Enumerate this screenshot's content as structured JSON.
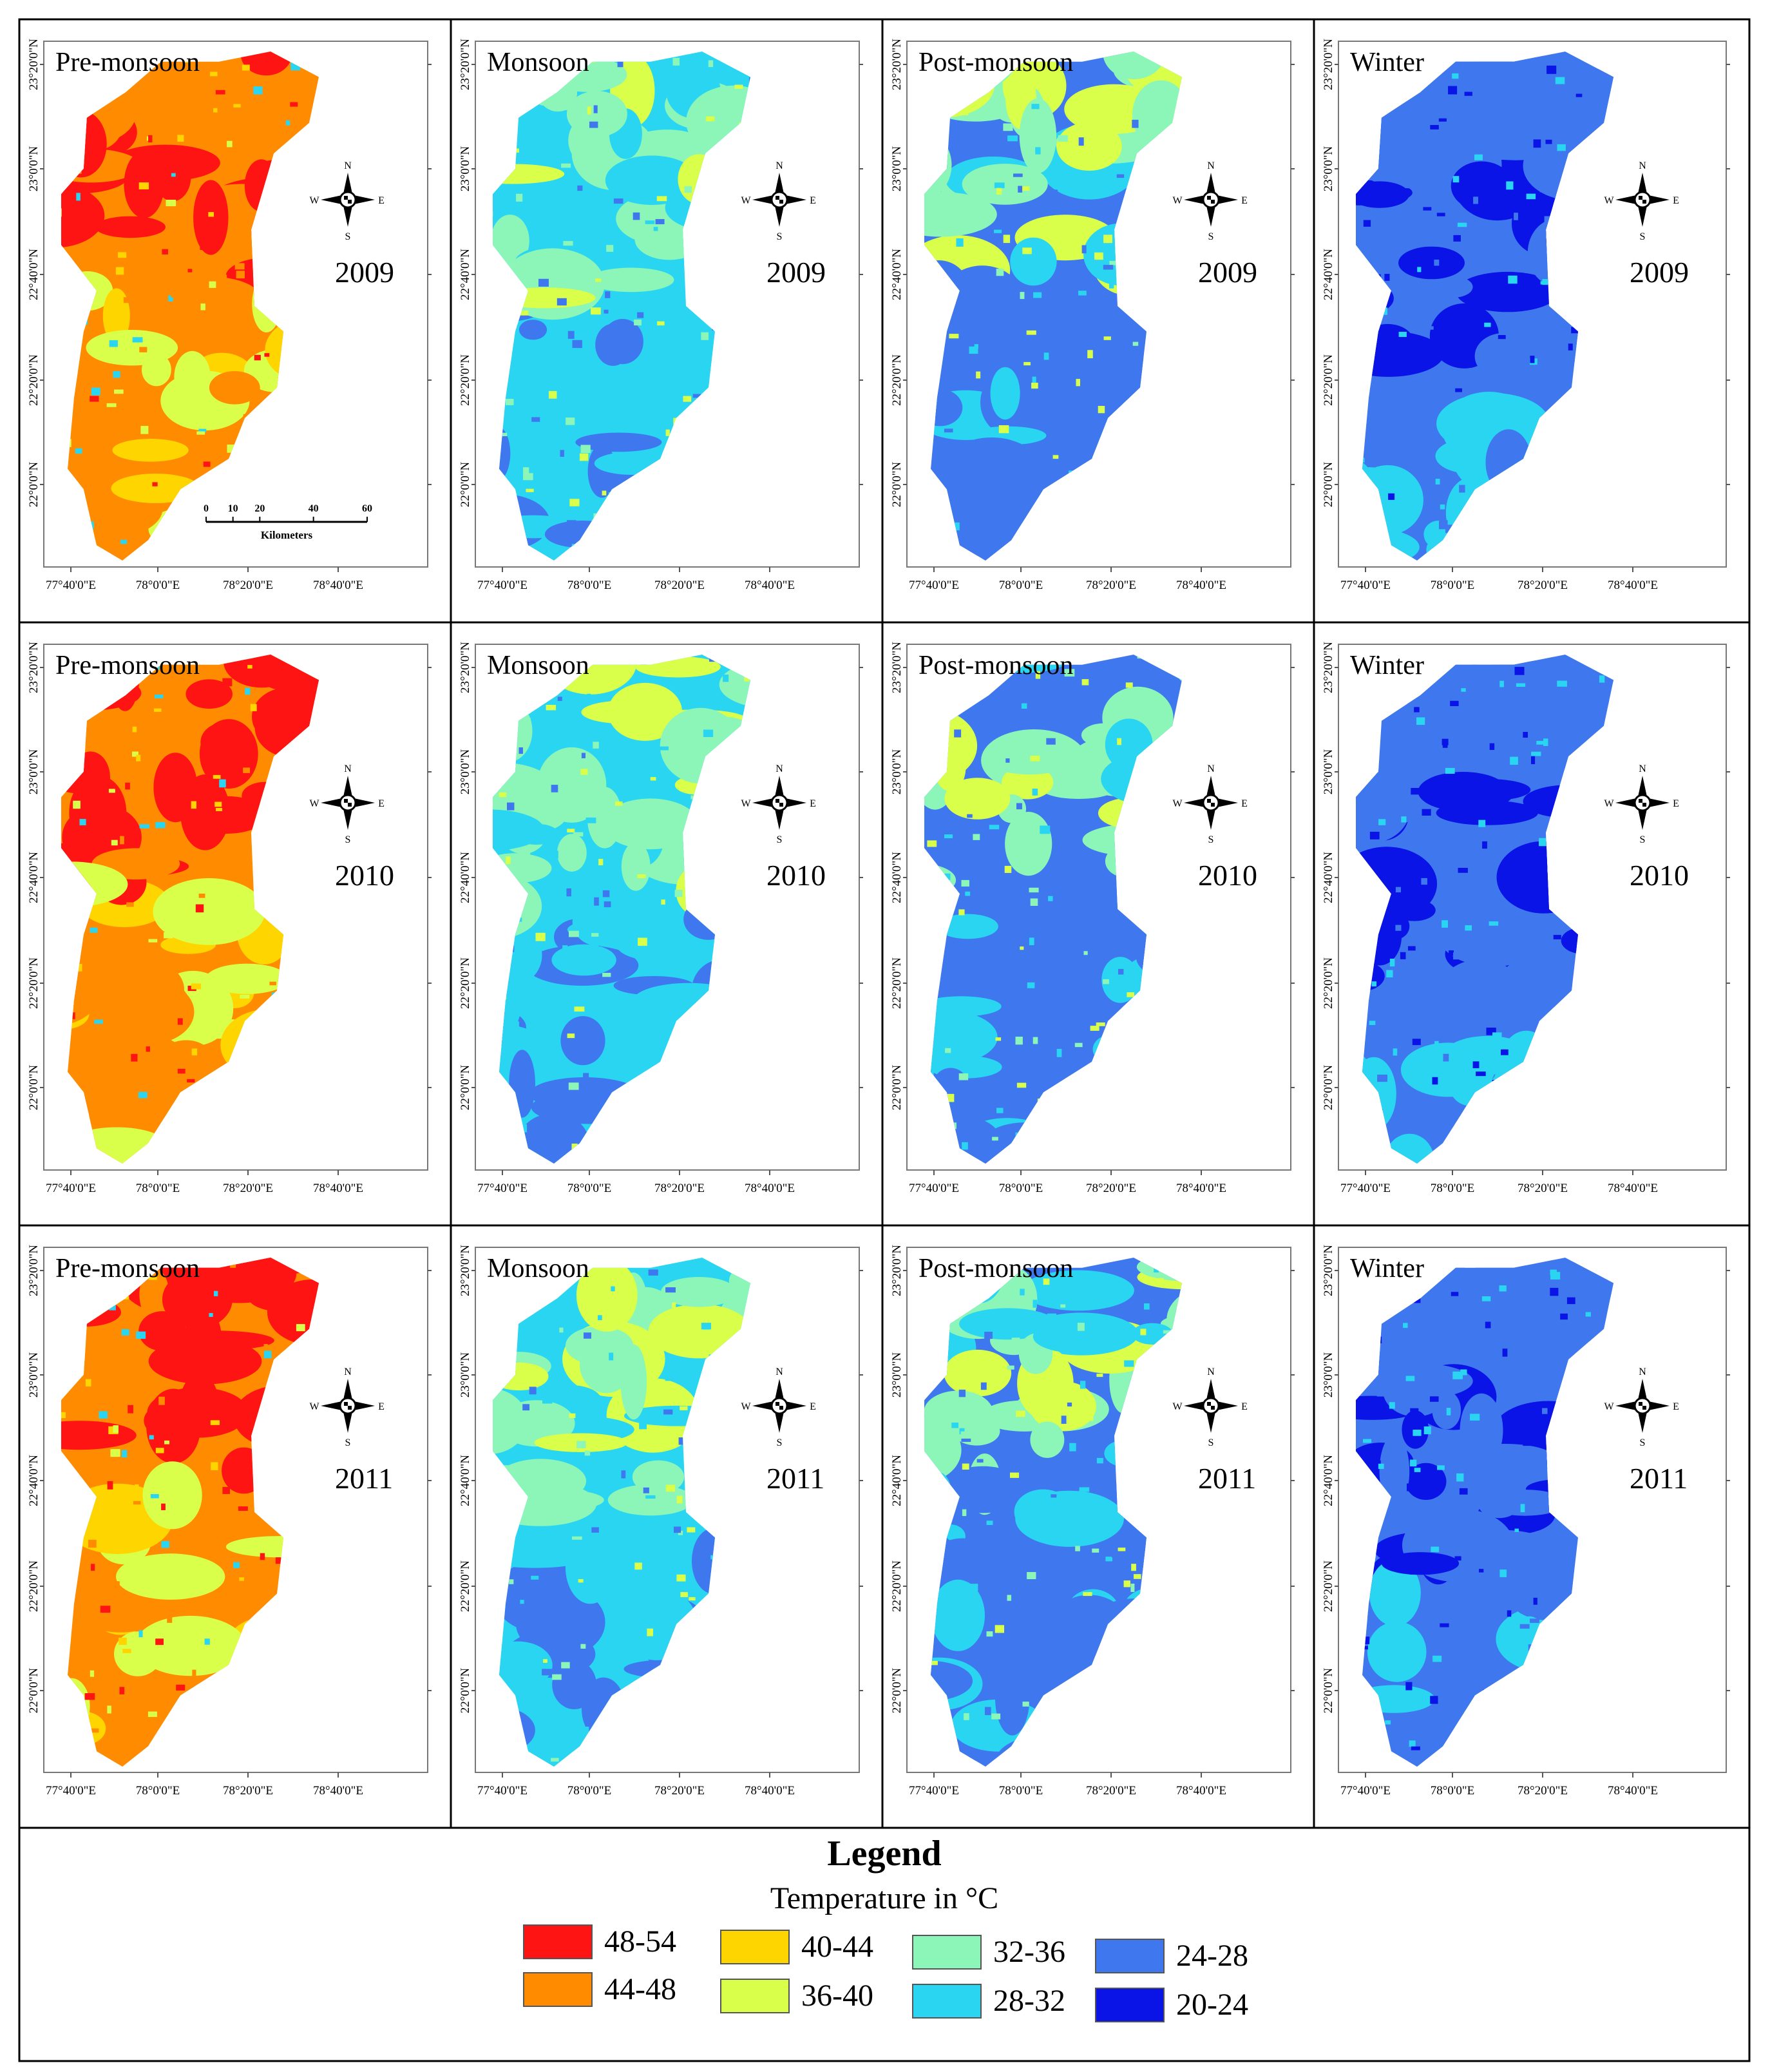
{
  "years": [
    "2009",
    "2010",
    "2011"
  ],
  "seasons": [
    "Pre-monsoon",
    "Monsoon",
    "Post-monsoon",
    "Winter"
  ],
  "x_ticks": [
    "77°40'0\"E",
    "78°0'0\"E",
    "78°20'0\"E",
    "78°40'0\"E"
  ],
  "y_ticks": [
    "23°20'0\"N",
    "23°0'0\"N",
    "22°40'0\"N",
    "22°20'0\"N",
    "22°0'0\"N"
  ],
  "compass": {
    "n": "N",
    "s": "S",
    "e": "E",
    "w": "W"
  },
  "scale_bar": {
    "ticks": [
      "0",
      "10",
      "20",
      "40",
      "60"
    ],
    "unit": "Kilometers"
  },
  "legend": {
    "title": "Legend",
    "subtitle": "Temperature in °C",
    "items": [
      {
        "label": "48-54",
        "color": "#ff1414"
      },
      {
        "label": "44-48",
        "color": "#ff8c00"
      },
      {
        "label": "40-44",
        "color": "#ffd500"
      },
      {
        "label": "36-40",
        "color": "#d9ff4a"
      },
      {
        "label": "32-36",
        "color": "#8cf5b8"
      },
      {
        "label": "28-32",
        "color": "#2ad5f2"
      },
      {
        "label": "24-28",
        "color": "#3f78ee"
      },
      {
        "label": "20-24",
        "color": "#0a14e6"
      }
    ]
  },
  "panel_palettes": {
    "Pre-monsoon": [
      "#ff8c00",
      "#ff1414",
      "#ffd500",
      "#d9ff4a",
      "#2ad5f2"
    ],
    "Monsoon": [
      "#2ad5f2",
      "#8cf5b8",
      "#3f78ee",
      "#d9ff4a"
    ],
    "Post-monsoon": [
      "#3f78ee",
      "#2ad5f2",
      "#8cf5b8",
      "#d9ff4a"
    ],
    "Winter": [
      "#3f78ee",
      "#2ad5f2",
      "#0a14e6"
    ]
  }
}
